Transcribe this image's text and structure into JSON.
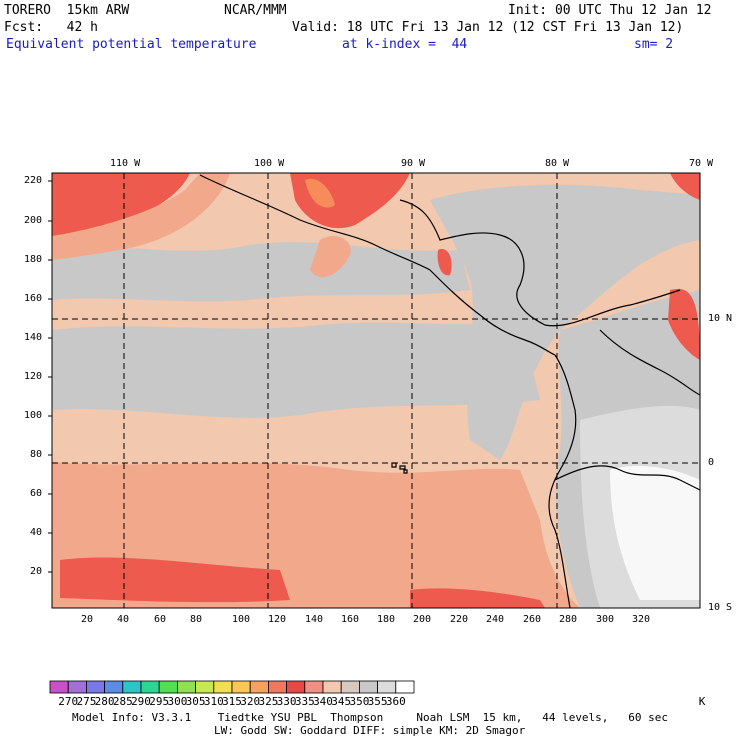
{
  "header": {
    "model": "TORERO  15km ARW",
    "center": "NCAR/MMM",
    "init": "Init: 00 UTC Thu 12 Jan 12",
    "fcst": "Fcst:   42 h",
    "valid": "Valid: 18 UTC Fri 13 Jan 12 (12 CST Fri 13 Jan 12)",
    "field": "Equivalent potential temperature",
    "level": "at k-index =  44",
    "smoothing": "sm= 2"
  },
  "map": {
    "top_longitudes": [
      "110 W",
      "100 W",
      "90 W",
      "80 W",
      "70 W"
    ],
    "right_latitudes": [
      "10 N",
      "0",
      "10 S"
    ],
    "left_grid_ticks": [
      "220",
      "200",
      "180",
      "160",
      "140",
      "120",
      "100",
      "80",
      "60",
      "40",
      "20"
    ],
    "bottom_grid_ticks": [
      "20",
      "40",
      "60",
      "80",
      "100",
      "120",
      "140",
      "160",
      "180",
      "200",
      "220",
      "240",
      "260",
      "280",
      "300",
      "320"
    ],
    "colors": {
      "light_salmon": "#f2c8ae",
      "salmon": "#f2a88a",
      "red_orange": "#ee5a4e",
      "red": "#e83c3c",
      "orange": "#f58c5a",
      "gray": "#c8c8c8",
      "light_gray": "#dcdcdc",
      "white": "#f8f8f8"
    }
  },
  "colorbar": {
    "labels": [
      "270",
      "275",
      "280",
      "285",
      "290",
      "295",
      "300",
      "305",
      "310",
      "315",
      "320",
      "325",
      "330",
      "335",
      "340",
      "345",
      "350",
      "355",
      "360"
    ],
    "unit": "K",
    "colors": [
      "#c850c8",
      "#a070d8",
      "#7878e8",
      "#5a8ce8",
      "#28c8c8",
      "#28d890",
      "#50e050",
      "#90e050",
      "#c8e850",
      "#f0e050",
      "#f8c850",
      "#f8a060",
      "#f07860",
      "#e84848",
      "#f09080",
      "#f2c8ae",
      "#d8c8c0",
      "#c8c8c8",
      "#dcdcdc",
      "#ffffff"
    ]
  },
  "footer": {
    "line1": "Model Info: V3.3.1    Tiedtke YSU PBL  Thompson     Noah LSM  15 km,   44 levels,   60 sec",
    "line2": "LW: Godd SW: Goddard DIFF: simple KM: 2D Smagor"
  }
}
